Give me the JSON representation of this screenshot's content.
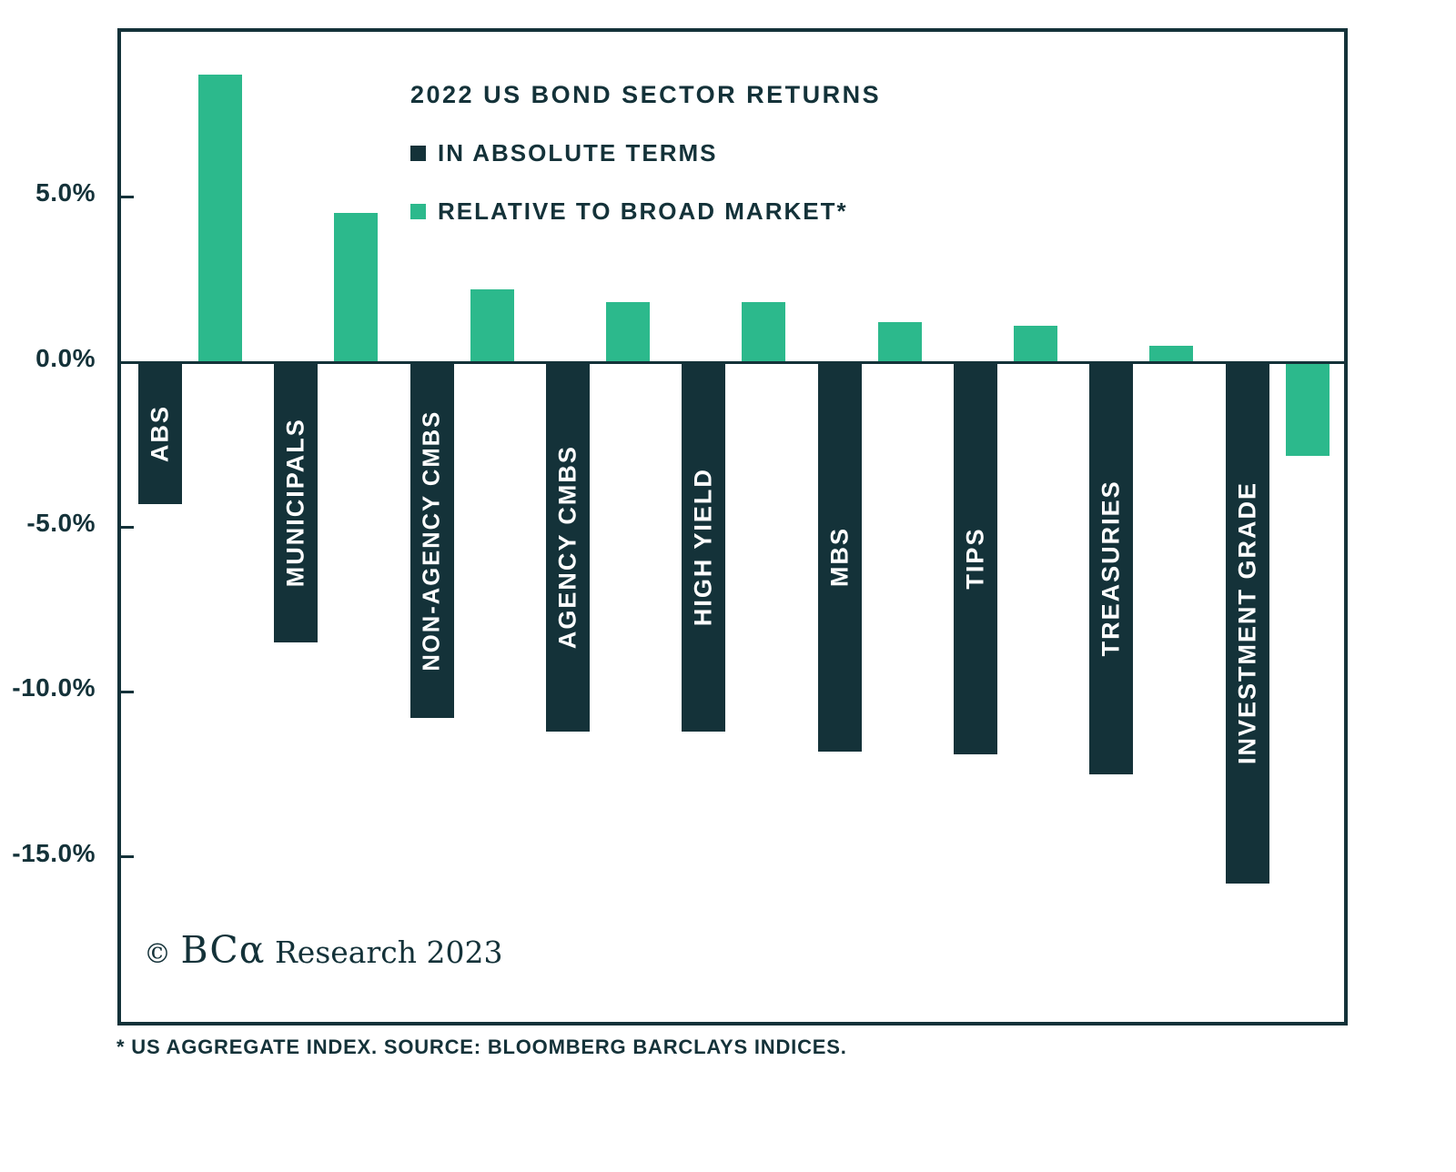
{
  "colors": {
    "dark": "#143239",
    "green": "#2CB98C",
    "text": "#143239",
    "background": "#FFFFFF"
  },
  "chart_data": {
    "type": "bar",
    "title": "2022 US BOND SECTOR RETURNS",
    "categories": [
      "ABS",
      "MUNICIPALS",
      "NON-AGENCY CMBS",
      "AGENCY CMBS",
      "HIGH YIELD",
      "MBS",
      "TIPS",
      "TREASURIES",
      "INVESTMENT GRADE"
    ],
    "series": [
      {
        "name": "IN ABSOLUTE TERMS",
        "color": "#143239",
        "values": [
          -4.3,
          -8.5,
          -10.8,
          -11.2,
          -11.2,
          -11.8,
          -11.9,
          -12.5,
          -15.8
        ]
      },
      {
        "name": "RELATIVE TO BROAD MARKET*",
        "color": "#2CB98C",
        "values": [
          8.7,
          4.5,
          2.2,
          1.8,
          1.8,
          1.2,
          1.1,
          0.5,
          -2.8
        ]
      }
    ],
    "xlabel": "",
    "ylabel": "",
    "y_ticks": [
      {
        "label": "5.0%",
        "value": 5
      },
      {
        "label": "0.0%",
        "value": 0
      },
      {
        "label": "-5.0%",
        "value": -5
      },
      {
        "label": "-10.0%",
        "value": -10
      },
      {
        "label": "-15.0%",
        "value": -15
      }
    ],
    "ylim": [
      -20,
      10
    ],
    "grid": false,
    "legend_position": "top-left-inside",
    "bar_label_placement": "vertical-inside-dark-bars"
  },
  "branding": {
    "copyright_symbol": "©",
    "brand": "BCα",
    "suffix": "Research 2023"
  },
  "footer": {
    "footnote": "* US AGGREGATE INDEX. SOURCE: BLOOMBERG BARCLAYS INDICES."
  }
}
